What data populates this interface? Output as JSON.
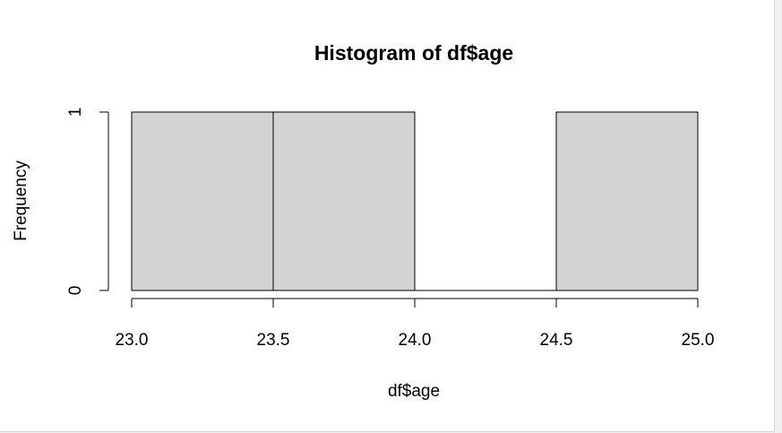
{
  "chart_data": {
    "type": "bar",
    "title": "Histogram of df$age",
    "xlabel": "df$age",
    "ylabel": "Frequency",
    "bins": [
      {
        "from": 23.0,
        "to": 23.5,
        "count": 1
      },
      {
        "from": 23.5,
        "to": 24.0,
        "count": 1
      },
      {
        "from": 24.0,
        "to": 24.5,
        "count": 0
      },
      {
        "from": 24.5,
        "to": 25.0,
        "count": 1
      }
    ],
    "xlim": [
      23.0,
      25.0
    ],
    "ylim": [
      0,
      1
    ],
    "xticks": [
      "23.0",
      "23.5",
      "24.0",
      "24.5",
      "25.0"
    ],
    "yticks": [
      "0",
      "1"
    ],
    "bar_fill": "#d3d3d3",
    "bar_stroke": "#000000",
    "grid": false
  }
}
